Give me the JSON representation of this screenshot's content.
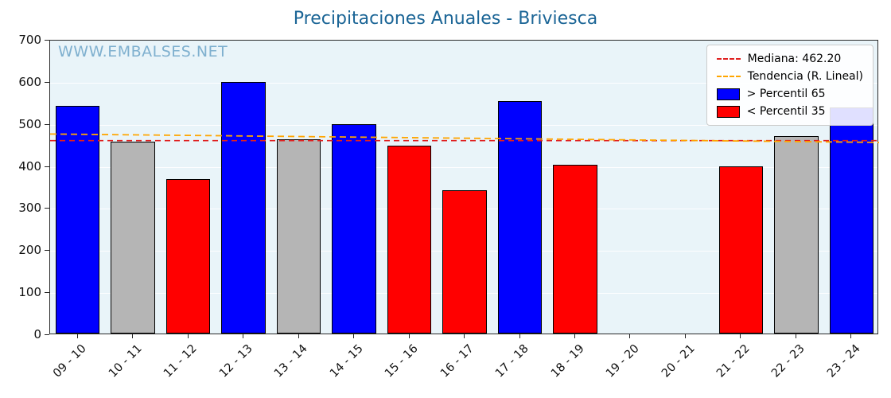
{
  "watermark": "WWW.EMBALSES.NET",
  "chart_data": {
    "type": "bar",
    "title": "Precipitaciones Anuales - Briviesca",
    "categories": [
      "09 - 10",
      "10 - 11",
      "11 - 12",
      "12 - 13",
      "13 - 14",
      "14 - 15",
      "15 - 16",
      "16 - 17",
      "17 - 18",
      "18 - 19",
      "19 - 20",
      "20 - 21",
      "21 - 22",
      "22 - 23",
      "23 - 24"
    ],
    "values": [
      542,
      456,
      367,
      597,
      462,
      498,
      447,
      341,
      552,
      402,
      0,
      0,
      398,
      470,
      538
    ],
    "bar_classes": [
      "above",
      "mid",
      "below",
      "above",
      "mid",
      "above",
      "below",
      "below",
      "above",
      "below",
      "none",
      "none",
      "below",
      "mid",
      "above"
    ],
    "xlabel": "",
    "ylabel": "",
    "ylim": [
      0,
      700
    ],
    "yticks": [
      0,
      100,
      200,
      300,
      400,
      500,
      600,
      700
    ],
    "grid": true,
    "median": 462.2,
    "trend": {
      "start": 478,
      "end": 458
    },
    "colors": {
      "above": "#0000ff",
      "below": "#ff0000",
      "mid": "#b5b5b5",
      "median_line": "#e02020",
      "trend_line": "#ffa500",
      "plot_bg": "#e9f4f9",
      "title": "#1b6596",
      "watermark": "#7fb0cf"
    },
    "legend_position": "top-right",
    "legend": [
      {
        "type": "dashed-line",
        "color": "#e02020",
        "label": "Mediana: 462.20"
      },
      {
        "type": "dashed-line",
        "color": "#ffa500",
        "label": "Tendencia (R. Lineal)"
      },
      {
        "type": "patch",
        "color": "#0000ff",
        "label": "> Percentil 65"
      },
      {
        "type": "patch",
        "color": "#ff0000",
        "label": "< Percentil 35"
      }
    ]
  }
}
